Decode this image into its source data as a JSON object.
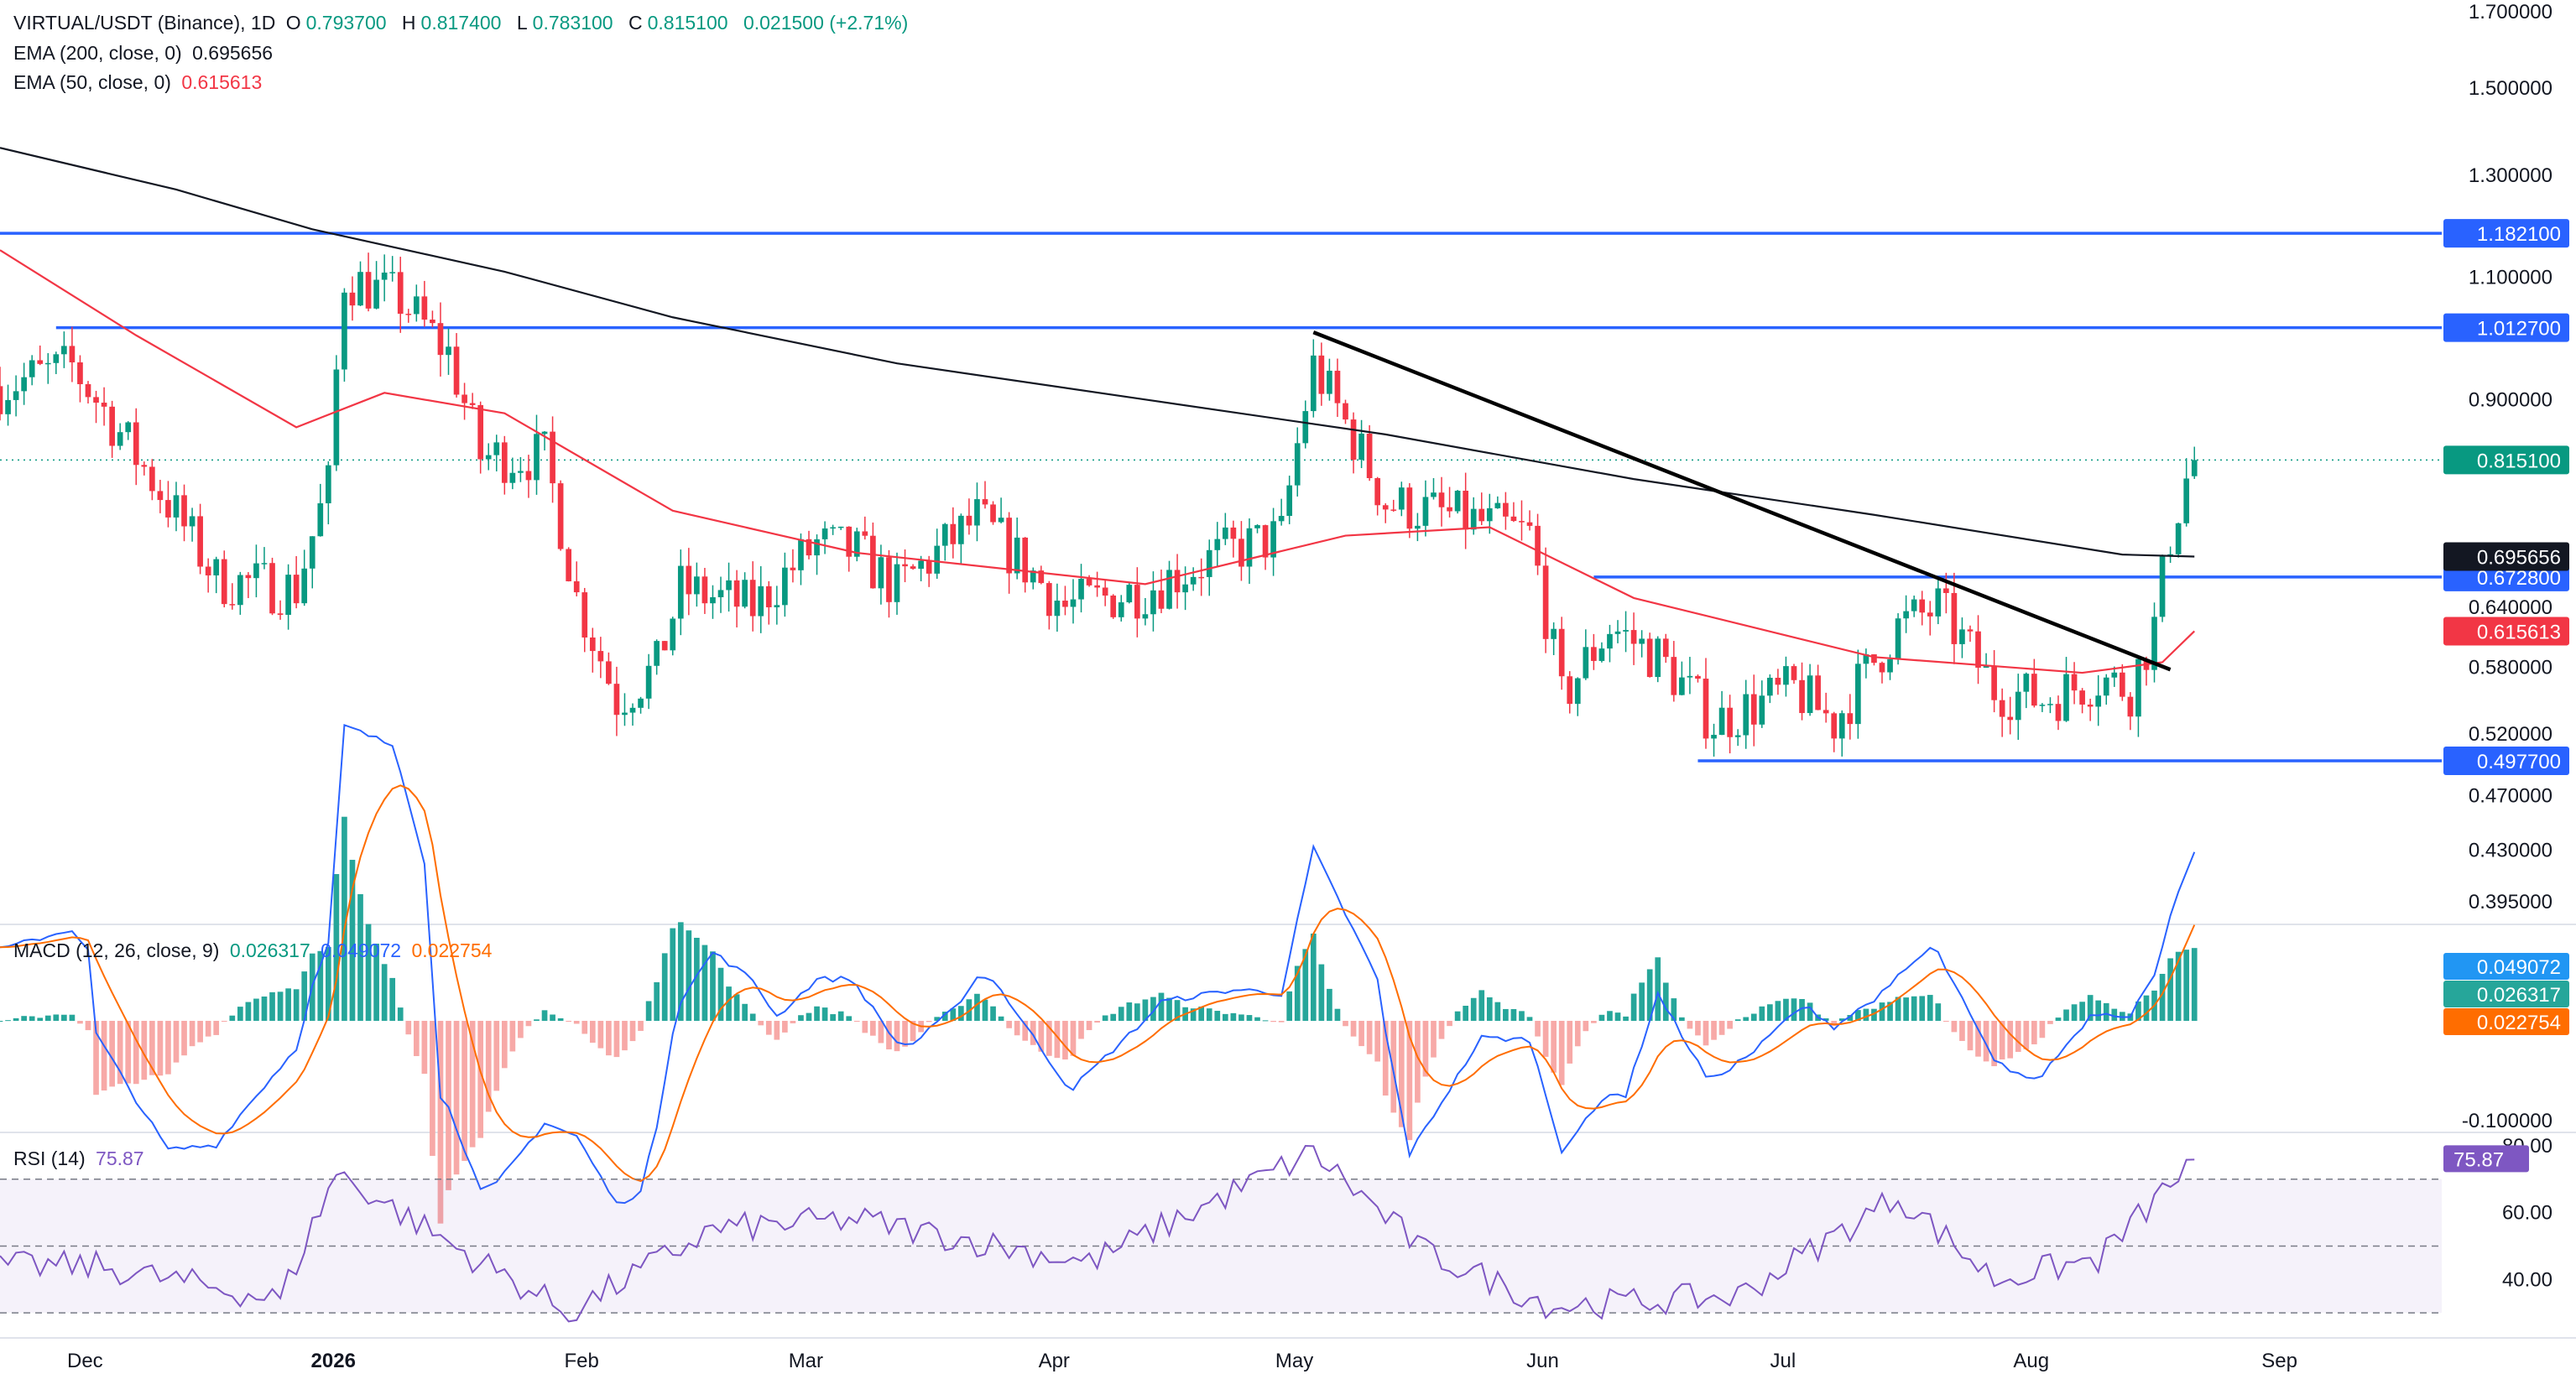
{
  "header": {
    "symbol": "VIRTUAL/USDT (Binance), 1D",
    "open_label": "O",
    "open": "0.793700",
    "high_label": "H",
    "high": "0.817400",
    "low_label": "L",
    "low": "0.783100",
    "close_label": "C",
    "close": "0.815100",
    "change": "0.021500 (+2.71%)"
  },
  "indicators": {
    "ema200": {
      "label": "EMA (200, close, 0)",
      "value": "0.695656",
      "color": "#131722"
    },
    "ema50": {
      "label": "EMA (50, close, 0)",
      "value": "0.615613",
      "color": "#f23645"
    },
    "macd": {
      "label": "MACD (12, 26, close, 9)",
      "hist": "0.026317",
      "macd": "0.049072",
      "signal": "0.022754",
      "macd_color": "#2962ff",
      "signal_color": "#ff6d00",
      "hist_pos_color": "#26a69a"
    },
    "rsi": {
      "label": "RSI (14)",
      "value": "75.87",
      "color": "#7e57c2"
    }
  },
  "colors": {
    "up": "#089981",
    "down": "#f23645",
    "level": "#2962ff",
    "trendline": "#000000",
    "grid": "#f0f3fa"
  },
  "chart_data": [
    {
      "type": "candlestick",
      "title": "VIRTUAL/USDT (Binance), 1D",
      "y_scale": "log",
      "y_ticks": [
        "1.700000",
        "1.500000",
        "1.300000",
        "1.100000",
        "0.900000",
        "0.640000",
        "0.580000",
        "0.520000",
        "0.470000",
        "0.430000",
        "0.395000"
      ],
      "x_ticks": [
        "Dec",
        "2026",
        "Feb",
        "Mar",
        "Apr",
        "May",
        "Jun",
        "Jul",
        "Aug",
        "Sep"
      ],
      "x_tick_dates": [
        "2025-12-01",
        "2026-01-01",
        "2026-02-01",
        "2026-03-01",
        "2026-04-01",
        "2026-05-01",
        "2026-06-01",
        "2026-07-01",
        "2026-08-01",
        "2026-09-01"
      ],
      "x_range": [
        "2025-11-23",
        "2026-09-05"
      ],
      "last_date": "2026-08-24",
      "last_candle": {
        "open": 0.7937,
        "high": 0.8174,
        "low": 0.7831,
        "close": 0.8151
      },
      "current_price": "0.815100",
      "horizontal_levels": [
        {
          "price": 1.1821,
          "label": "1.182100",
          "from": "2025-11-23"
        },
        {
          "price": 1.0127,
          "label": "1.012700",
          "from": "2025-11-30"
        },
        {
          "price": 0.6728,
          "label": "0.672800",
          "from": "2026-06-10"
        },
        {
          "price": 0.4977,
          "label": "0.497700",
          "from": "2026-06-23"
        }
      ],
      "trendline": [
        {
          "date": "2026-05-06",
          "price": 1.005
        },
        {
          "date": "2026-08-21",
          "price": 0.578
        }
      ],
      "ema200_path": [
        {
          "date": "2025-11-23",
          "price": 1.36
        },
        {
          "date": "2025-12-15",
          "price": 1.27
        },
        {
          "date": "2026-01-01",
          "price": 1.19
        },
        {
          "date": "2026-01-25",
          "price": 1.11
        },
        {
          "date": "2026-02-15",
          "price": 1.03
        },
        {
          "date": "2026-03-15",
          "price": 0.955
        },
        {
          "date": "2026-04-15",
          "price": 0.9
        },
        {
          "date": "2026-05-15",
          "price": 0.85
        },
        {
          "date": "2026-06-15",
          "price": 0.79
        },
        {
          "date": "2026-07-15",
          "price": 0.745
        },
        {
          "date": "2026-08-15",
          "price": 0.698
        },
        {
          "date": "2026-08-24",
          "price": 0.6957
        }
      ],
      "ema200_label": "0.695656",
      "ema50_path": [
        {
          "date": "2025-11-23",
          "price": 1.15
        },
        {
          "date": "2025-12-10",
          "price": 1.0
        },
        {
          "date": "2025-12-30",
          "price": 0.86
        },
        {
          "date": "2026-01-10",
          "price": 0.91
        },
        {
          "date": "2026-01-25",
          "price": 0.88
        },
        {
          "date": "2026-02-15",
          "price": 0.75
        },
        {
          "date": "2026-03-10",
          "price": 0.7
        },
        {
          "date": "2026-04-15",
          "price": 0.665
        },
        {
          "date": "2026-05-10",
          "price": 0.72
        },
        {
          "date": "2026-05-28",
          "price": 0.73
        },
        {
          "date": "2026-06-15",
          "price": 0.65
        },
        {
          "date": "2026-07-15",
          "price": 0.59
        },
        {
          "date": "2026-08-10",
          "price": 0.575
        },
        {
          "date": "2026-08-20",
          "price": 0.585
        },
        {
          "date": "2026-08-24",
          "price": 0.6156
        }
      ],
      "ema50_label": "0.615613"
    },
    {
      "type": "macd",
      "y_ticks": [
        "-0.100000"
      ],
      "labels": {
        "macd": "0.049072",
        "hist": "0.026317",
        "signal": "0.022754"
      }
    },
    {
      "type": "line",
      "series_name": "RSI (14)",
      "y_ticks": [
        "80.00",
        "60.00",
        "40.00"
      ],
      "bands": [
        70,
        50,
        30
      ],
      "ylim": [
        25,
        82
      ],
      "last_value": "75.87",
      "anchor_points": [
        {
          "date": "2025-12-05",
          "value": 44
        },
        {
          "date": "2025-12-28",
          "value": 34
        },
        {
          "date": "2026-01-04",
          "value": 72
        },
        {
          "date": "2026-01-20",
          "value": 48
        },
        {
          "date": "2026-02-02",
          "value": 30
        },
        {
          "date": "2026-02-20",
          "value": 55
        },
        {
          "date": "2026-03-10",
          "value": 58
        },
        {
          "date": "2026-04-08",
          "value": 45
        },
        {
          "date": "2026-05-06",
          "value": 78
        },
        {
          "date": "2026-05-20",
          "value": 48
        },
        {
          "date": "2026-06-05",
          "value": 32
        },
        {
          "date": "2026-06-28",
          "value": 35
        },
        {
          "date": "2026-07-18",
          "value": 65
        },
        {
          "date": "2026-07-30",
          "value": 40
        },
        {
          "date": "2026-08-12",
          "value": 46
        },
        {
          "date": "2026-08-24",
          "value": 75.87
        }
      ]
    }
  ]
}
